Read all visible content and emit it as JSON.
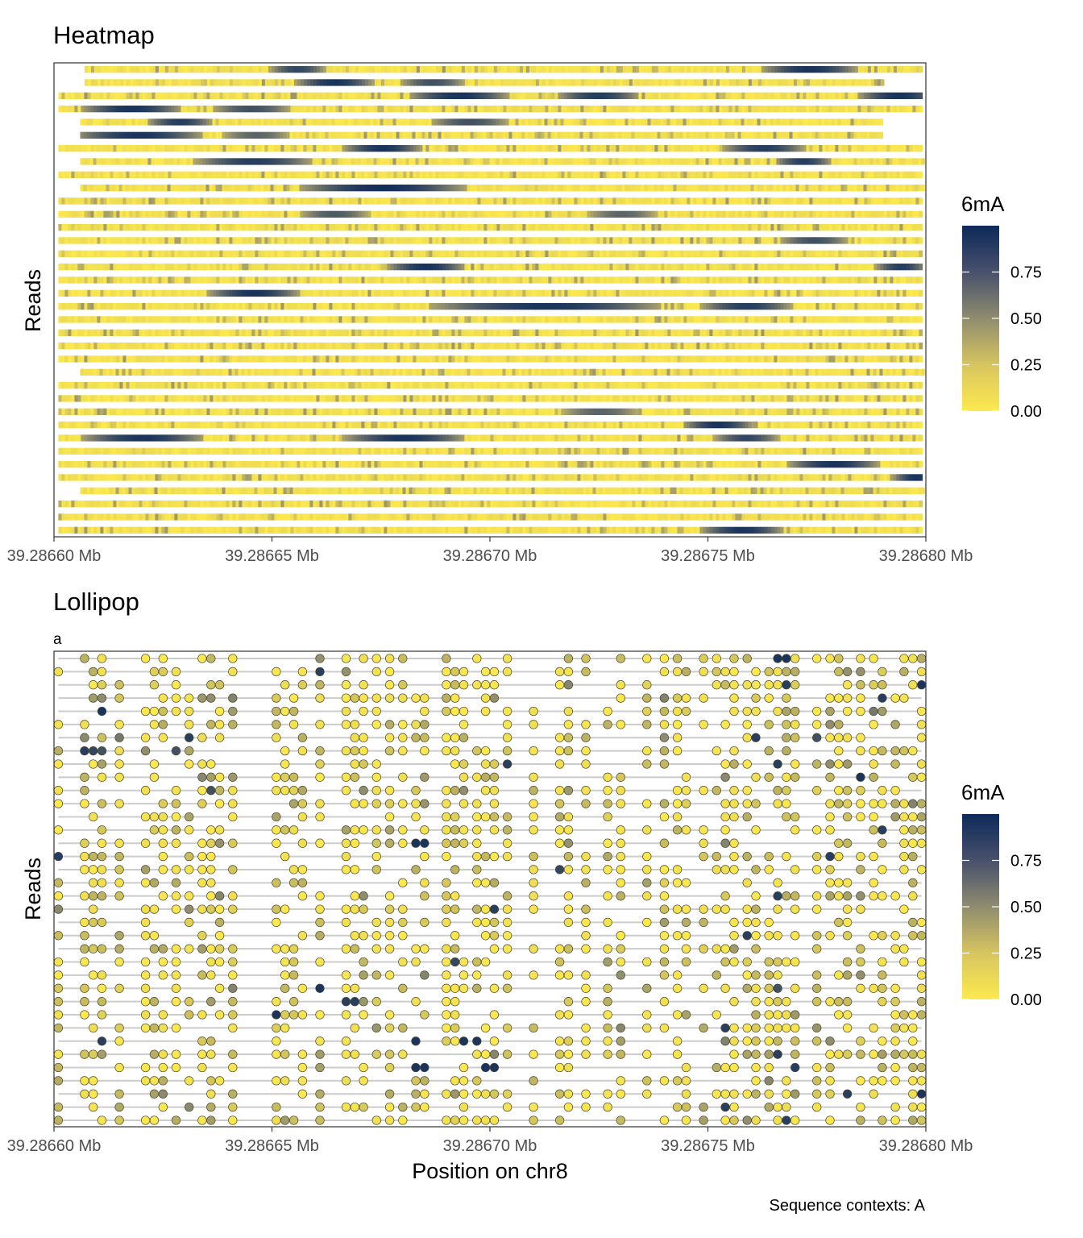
{
  "colors": {
    "low": "#fde94e",
    "mid": "#8f8c6f",
    "high": "#0d2a5a",
    "track": "#cccccc",
    "frame": "#333333",
    "tick": "#333333"
  },
  "chart_data": [
    {
      "type": "heatmap",
      "title": "Heatmap",
      "xlabel": "",
      "ylabel": "Reads",
      "xlim": [
        39.2866,
        39.2868
      ],
      "x_ticks": [
        39.2866,
        39.28665,
        39.2867,
        39.28675,
        39.2868
      ],
      "x_tick_labels": [
        "39.28660 Mb",
        "39.28665 Mb",
        "39.28670 Mb",
        "39.28675 Mb",
        "39.28680 Mb"
      ],
      "n_reads": 36,
      "colorbar": {
        "title": "6mA",
        "range": [
          0,
          1
        ],
        "ticks": [
          0.0,
          0.25,
          0.5,
          0.75
        ],
        "tick_labels": [
          "0.00",
          "0.25",
          "0.50",
          "0.75"
        ]
      },
      "read_spans": [
        [
          39.286607,
          39.286799
        ],
        [
          39.286607,
          39.28679
        ],
        [
          39.286601,
          39.286799
        ],
        [
          39.286601,
          39.286799
        ],
        [
          39.286606,
          39.28679
        ],
        [
          39.286606,
          39.28679
        ],
        [
          39.286601,
          39.286799
        ],
        [
          39.286606,
          39.286799
        ],
        [
          39.286601,
          39.286799
        ],
        [
          39.286606,
          39.286799
        ],
        [
          39.286601,
          39.286799
        ],
        [
          39.286601,
          39.286799
        ],
        [
          39.286601,
          39.286799
        ],
        [
          39.286601,
          39.286799
        ],
        [
          39.286601,
          39.286799
        ],
        [
          39.286601,
          39.286799
        ],
        [
          39.286601,
          39.286799
        ],
        [
          39.286601,
          39.286799
        ],
        [
          39.286601,
          39.286799
        ],
        [
          39.286601,
          39.286799
        ],
        [
          39.286601,
          39.286799
        ],
        [
          39.286601,
          39.286799
        ],
        [
          39.286601,
          39.286799
        ],
        [
          39.286606,
          39.286799
        ],
        [
          39.286601,
          39.286799
        ],
        [
          39.286601,
          39.286799
        ],
        [
          39.286601,
          39.286799
        ],
        [
          39.286601,
          39.286799
        ],
        [
          39.286601,
          39.286799
        ],
        [
          39.286601,
          39.286799
        ],
        [
          39.286601,
          39.286799
        ],
        [
          39.286601,
          39.286799
        ],
        [
          39.286606,
          39.286799
        ],
        [
          39.286601,
          39.286799
        ],
        [
          39.286601,
          39.286799
        ],
        [
          39.286601,
          39.286799
        ]
      ],
      "high_regions": [
        [
          0,
          39.286653,
          39.286658,
          0.85
        ],
        [
          0,
          39.286766,
          39.28678,
          0.95
        ],
        [
          1,
          39.286659,
          39.286669,
          0.95
        ],
        [
          1,
          39.286683,
          39.28669,
          0.8
        ],
        [
          2,
          39.286685,
          39.2867,
          0.95
        ],
        [
          2,
          39.286719,
          39.28673,
          0.9
        ],
        [
          2,
          39.286788,
          39.286799,
          0.95
        ],
        [
          3,
          39.28661,
          39.286625,
          0.95
        ],
        [
          3,
          39.28664,
          39.28665,
          0.8
        ],
        [
          4,
          39.286625,
          39.286632,
          0.9
        ],
        [
          4,
          39.28669,
          39.2867,
          0.8
        ],
        [
          5,
          39.286608,
          39.28663,
          0.95
        ],
        [
          5,
          39.286642,
          39.28665,
          0.7
        ],
        [
          6,
          39.28667,
          39.28668,
          0.95
        ],
        [
          6,
          39.286757,
          39.286768,
          0.9
        ],
        [
          7,
          39.286636,
          39.286655,
          0.9
        ],
        [
          7,
          39.286769,
          39.286774,
          0.9
        ],
        [
          9,
          39.28666,
          39.28669,
          0.98
        ],
        [
          11,
          39.28666,
          39.286668,
          0.75
        ],
        [
          11,
          39.286726,
          39.286734,
          0.7
        ],
        [
          13,
          39.28677,
          39.286778,
          0.8
        ],
        [
          15,
          39.28668,
          39.28669,
          0.95
        ],
        [
          15,
          39.286792,
          39.286796,
          0.9
        ],
        [
          17,
          39.286639,
          39.286652,
          0.95
        ],
        [
          18,
          39.28669,
          39.286735,
          0.95
        ],
        [
          18,
          39.286752,
          39.286765,
          0.9
        ],
        [
          26,
          39.28672,
          39.28673,
          0.7
        ],
        [
          27,
          39.286748,
          39.286756,
          0.95
        ],
        [
          28,
          39.28661,
          39.28663,
          0.95
        ],
        [
          28,
          39.28667,
          39.28669,
          0.95
        ],
        [
          28,
          39.286755,
          39.286762,
          0.85
        ],
        [
          30,
          39.286772,
          39.286785,
          0.95
        ],
        [
          31,
          39.286796,
          39.286799,
          0.95
        ],
        [
          35,
          39.286752,
          39.286763,
          0.95
        ]
      ]
    },
    {
      "type": "scatter",
      "title": "Lollipop",
      "subtitle": "a",
      "xlabel": "Position on chr8",
      "ylabel": "Reads",
      "xlim": [
        39.2866,
        39.2868
      ],
      "x_ticks": [
        39.2866,
        39.28665,
        39.2867,
        39.28675,
        39.2868
      ],
      "x_tick_labels": [
        "39.28660 Mb",
        "39.28665 Mb",
        "39.28670 Mb",
        "39.28675 Mb",
        "39.28680 Mb"
      ],
      "n_reads": 36,
      "colorbar": {
        "title": "6mA",
        "range": [
          0,
          1
        ],
        "ticks": [
          0.0,
          0.25,
          0.5,
          0.75
        ],
        "tick_labels": [
          "0.00",
          "0.25",
          "0.50",
          "0.75"
        ]
      },
      "site_positions": [
        39.286601,
        39.286607,
        39.286609,
        39.286611,
        39.286615,
        39.286621,
        39.286623,
        39.286625,
        39.286628,
        39.286631,
        39.286634,
        39.286636,
        39.286638,
        39.286641,
        39.286651,
        39.286653,
        39.286655,
        39.286657,
        39.286661,
        39.286667,
        39.286669,
        39.286671,
        39.286674,
        39.286677,
        39.28668,
        39.286683,
        39.286685,
        39.28669,
        39.286692,
        39.286694,
        39.286697,
        39.286699,
        39.286701,
        39.286704,
        39.28671,
        39.286716,
        39.286718,
        39.286722,
        39.286727,
        39.28673,
        39.286736,
        39.28674,
        39.286743,
        39.286745,
        39.286749,
        39.286752,
        39.286754,
        39.286756,
        39.286759,
        39.286761,
        39.286764,
        39.286766,
        39.286768,
        39.28677,
        39.286775,
        39.286778,
        39.28678,
        39.286782,
        39.286785,
        39.286788,
        39.28679,
        39.286793,
        39.286795,
        39.286797,
        39.286799
      ],
      "dark_calls": [
        [
          0,
          39.286766,
          0.95
        ],
        [
          0,
          39.286768,
          0.95
        ],
        [
          1,
          39.286661,
          0.9
        ],
        [
          2,
          39.286768,
          0.9
        ],
        [
          2,
          39.286732,
          0.85
        ],
        [
          2,
          39.286799,
          0.95
        ],
        [
          3,
          39.28674,
          0.55
        ],
        [
          3,
          39.28679,
          0.9
        ],
        [
          4,
          39.286611,
          0.95
        ],
        [
          4,
          39.286787,
          0.6
        ],
        [
          6,
          39.286631,
          0.9
        ],
        [
          6,
          39.286615,
          0.6
        ],
        [
          6,
          39.286761,
          0.9
        ],
        [
          6,
          39.286775,
          0.8
        ],
        [
          7,
          39.286607,
          0.9
        ],
        [
          7,
          39.286609,
          0.85
        ],
        [
          7,
          39.286611,
          0.8
        ],
        [
          7,
          39.286628,
          0.8
        ],
        [
          8,
          39.286766,
          0.9
        ],
        [
          8,
          39.286704,
          0.9
        ],
        [
          9,
          39.286785,
          0.95
        ],
        [
          10,
          39.286636,
          0.8
        ],
        [
          13,
          39.28679,
          0.9
        ],
        [
          14,
          39.286683,
          0.95
        ],
        [
          14,
          39.286685,
          0.95
        ],
        [
          15,
          39.286601,
          0.9
        ],
        [
          15,
          39.286778,
          0.9
        ],
        [
          16,
          39.286715,
          0.85
        ],
        [
          18,
          39.286766,
          0.9
        ],
        [
          19,
          39.286701,
          0.9
        ],
        [
          21,
          39.286758,
          0.9
        ],
        [
          23,
          39.286692,
          0.85
        ],
        [
          25,
          39.286661,
          0.95
        ],
        [
          25,
          39.286766,
          0.8
        ],
        [
          26,
          39.286668,
          0.9
        ],
        [
          27,
          39.286651,
          0.95
        ],
        [
          28,
          39.286754,
          0.9
        ],
        [
          28,
          39.286772,
          0.85
        ],
        [
          29,
          39.286611,
          0.9
        ],
        [
          29,
          39.286682,
          0.95
        ],
        [
          29,
          39.286695,
          0.95
        ],
        [
          29,
          39.286697,
          0.95
        ],
        [
          30,
          39.286766,
          0.9
        ],
        [
          31,
          39.286683,
          0.95
        ],
        [
          31,
          39.286685,
          0.95
        ],
        [
          31,
          39.286699,
          0.95
        ],
        [
          31,
          39.286701,
          0.95
        ],
        [
          31,
          39.28677,
          0.9
        ],
        [
          33,
          39.286783,
          0.9
        ],
        [
          33,
          39.286799,
          0.95
        ],
        [
          34,
          39.286754,
          0.9
        ],
        [
          35,
          39.286768,
          0.9
        ]
      ]
    }
  ],
  "caption": "Sequence contexts: A"
}
